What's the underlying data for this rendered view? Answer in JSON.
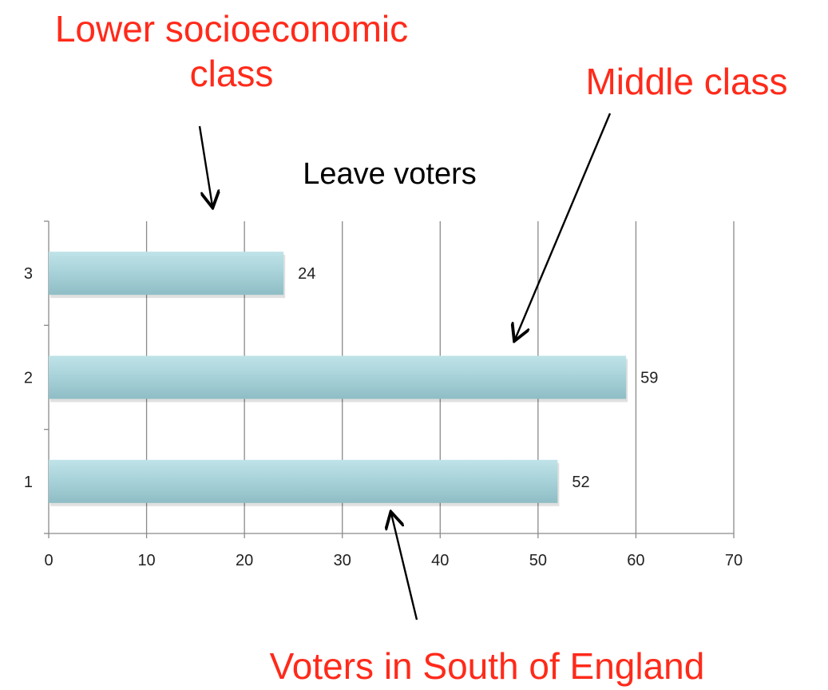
{
  "chart_data": {
    "type": "bar",
    "orientation": "horizontal",
    "title": "Leave voters",
    "categories": [
      "1",
      "2",
      "3"
    ],
    "values": [
      52,
      59,
      24
    ],
    "data_labels": [
      "52",
      "59",
      "24"
    ],
    "xlim": [
      0,
      70
    ],
    "xticks": [
      "0",
      "10",
      "20",
      "30",
      "40",
      "50",
      "60",
      "70"
    ],
    "xlabel": "",
    "ylabel": "",
    "grid": "vertical",
    "legend": "none",
    "bar_color": "#a9d3da",
    "bar_shade_color": "#8fbdc5",
    "annotations": [
      {
        "lines": [
          "Lower socioeconomic",
          "class"
        ],
        "color": "#ff2a1a",
        "points_to_category": "3"
      },
      {
        "lines": [
          "Middle class"
        ],
        "color": "#ff2a1a",
        "points_to_category": "2"
      },
      {
        "lines": [
          "Voters in South of England"
        ],
        "color": "#ff2a1a",
        "points_to_category": "1"
      }
    ]
  }
}
